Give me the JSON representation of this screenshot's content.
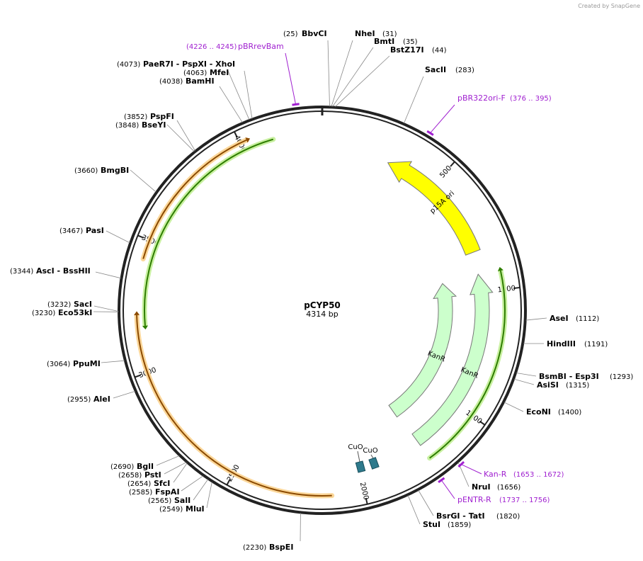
{
  "watermark": "Created by SnapGene",
  "plasmid": {
    "name": "pCYP50",
    "length": "4314 bp"
  },
  "ticks": [
    "500",
    "1000",
    "1500",
    "2000",
    "2500",
    "3000",
    "3500",
    "4000"
  ],
  "enzymes": [
    {
      "name": "BbvCI",
      "position": "(25)"
    },
    {
      "name": "NheI",
      "position": "(31)"
    },
    {
      "name": "BmtI",
      "position": "(35)"
    },
    {
      "name": "BstZ17I",
      "position": "(44)"
    },
    {
      "name": "SacII",
      "position": "(283)"
    },
    {
      "name": "AseI",
      "position": "(1112)"
    },
    {
      "name": "HindIII",
      "position": "(1191)"
    },
    {
      "name": "BsmBI  - Esp3I",
      "position": "(1293)"
    },
    {
      "name": "AsiSI",
      "position": "(1315)"
    },
    {
      "name": "EcoNI",
      "position": "(1400)"
    },
    {
      "name": "NruI",
      "position": "(1656)"
    },
    {
      "name": "BsrGI  - TatI",
      "position": "(1820)"
    },
    {
      "name": "StuI",
      "position": "(1859)"
    },
    {
      "name": "BspEI",
      "position": "(2230)"
    },
    {
      "name": "MluI",
      "position": "(2549)"
    },
    {
      "name": "SalI",
      "position": "(2565)"
    },
    {
      "name": "FspAI",
      "position": "(2585)"
    },
    {
      "name": "SfcI",
      "position": "(2654)"
    },
    {
      "name": "PstI",
      "position": "(2658)"
    },
    {
      "name": "BglI",
      "position": "(2690)"
    },
    {
      "name": "AleI",
      "position": "(2955)"
    },
    {
      "name": "PpuMI",
      "position": "(3064)"
    },
    {
      "name": "Eco53kI",
      "position": "(3230)"
    },
    {
      "name": "SacI",
      "position": "(3232)"
    },
    {
      "name": "AscI  - BssHII",
      "position": "(3344)"
    },
    {
      "name": "PasI",
      "position": "(3467)"
    },
    {
      "name": "BmgBI",
      "position": "(3660)"
    },
    {
      "name": "BseYI",
      "position": "(3848)"
    },
    {
      "name": "PspFI",
      "position": "(3852)"
    },
    {
      "name": "BamHI",
      "position": "(4038)"
    },
    {
      "name": "MfeI",
      "position": "(4063)"
    },
    {
      "name": "PaeR7I  - PspXI  - XhoI",
      "position": "(4073)"
    }
  ],
  "primers": [
    {
      "name": "pBRrevBam",
      "position": "(4226 .. 4245)"
    },
    {
      "name": "pBR322ori-F",
      "position": "(376 .. 395)"
    },
    {
      "name": "Kan-R",
      "position": "(1653 .. 1672)"
    },
    {
      "name": "pENTR-R",
      "position": "(1737 .. 1756)"
    }
  ],
  "features": [
    {
      "label": "p15A ori"
    },
    {
      "label": "KanR"
    },
    {
      "label": "KanR"
    },
    {
      "label": "CuO"
    },
    {
      "label": "CuO"
    }
  ]
}
